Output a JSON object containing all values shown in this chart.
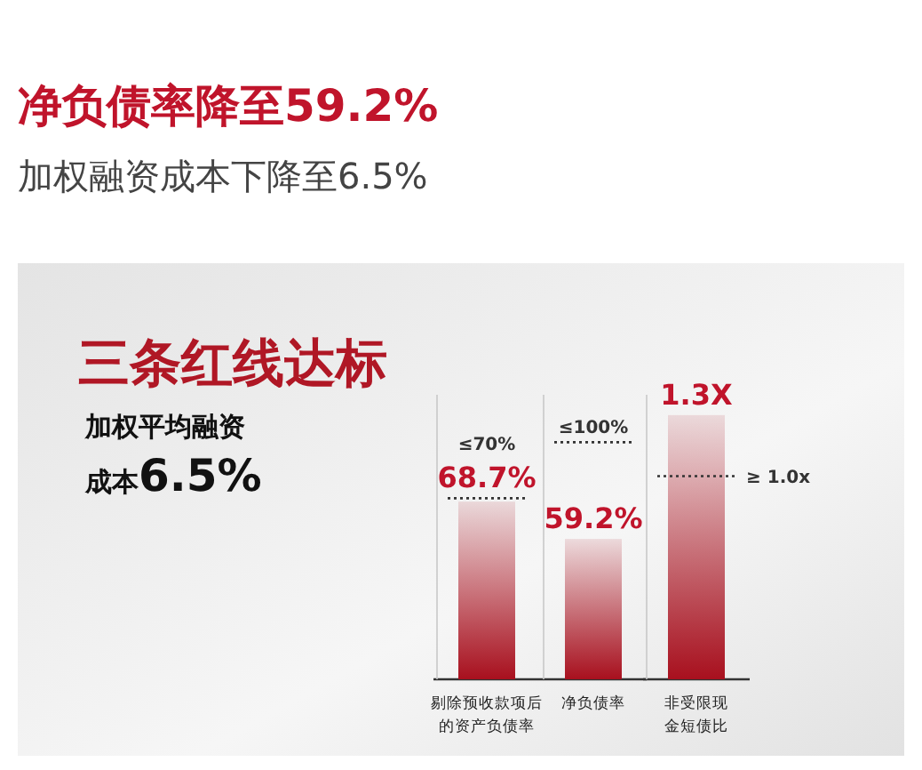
{
  "chart_data": [
    {
      "type": "bar",
      "title": "净负债率降至59.2%",
      "subtitle": "加权融资成本下降至6.5%",
      "annotations": [
        "三条红线达标",
        "加权平均融资",
        "成本**6.5%**"
      ],
      "categories": [
        "剔除预收款项后的资产负债率"
      ],
      "values": [
        68.7
      ],
      "value_labels": [
        "68.7%"
      ],
      "data_labels": true,
      "color": "#a8101e",
      "ylim": [
        0,
        110
      ],
      "ref_lines": [
        {
          "axis": "y",
          "value": 70,
          "label": "≤70%",
          "line_style": "dotted"
        }
      ]
    },
    {
      "type": "bar",
      "categories": [
        "净负债率"
      ],
      "values": [
        59.2
      ],
      "value_labels": [
        "59.2%"
      ],
      "data_labels": true,
      "color": "#a8101e",
      "ylim": [
        0,
        120
      ],
      "ref_lines": [
        {
          "axis": "y",
          "value": 100,
          "label": "≤100%",
          "line_style": "dotted"
        }
      ]
    },
    {
      "type": "bar",
      "categories": [
        "非受限现金短债比"
      ],
      "values": [
        1.3
      ],
      "value_labels": [
        "1.3X"
      ],
      "data_labels": true,
      "color": "#a8101e",
      "ylim": [
        0,
        1.4
      ],
      "ref_lines": [
        {
          "axis": "y",
          "value": 1.0,
          "label": "≥ 1.0x",
          "line_style": "dotted"
        }
      ]
    }
  ]
}
